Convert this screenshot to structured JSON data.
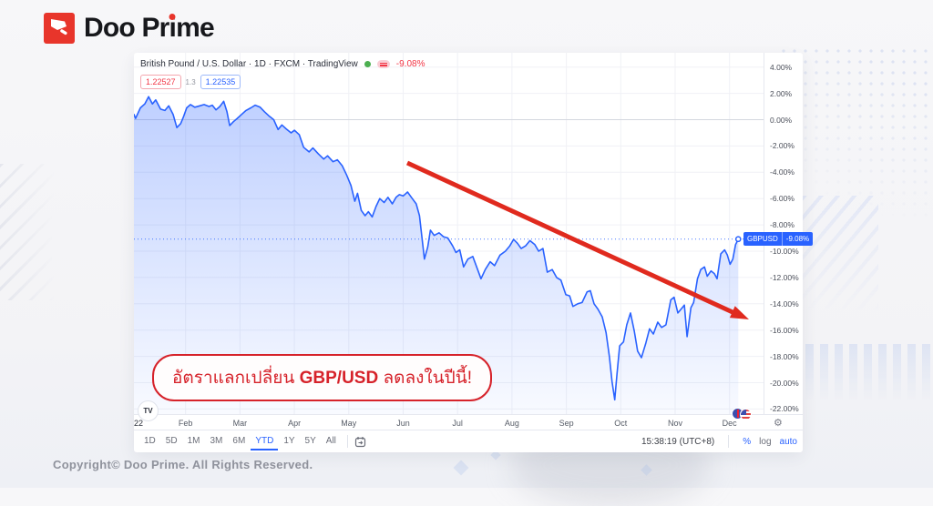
{
  "brand": {
    "logo_text_1": "Doo Pr",
    "logo_text_2": "i",
    "logo_text_3": "me"
  },
  "colors": {
    "accent_blue": "#2962ff",
    "brand_red": "#e8352b",
    "annotation_red": "#e02a1e",
    "callout_red": "#d6222a",
    "negative_red": "#f23645"
  },
  "chart": {
    "legend": {
      "symbol_title": "British Pound / U.S. Dollar · 1D · FXCM · TradingView",
      "change": "-9.08%"
    },
    "quote": {
      "bid": "1.22527",
      "spread": "1.3",
      "ask": "1.22535"
    },
    "price_label": {
      "symbol": "GBPUSD",
      "change": "-9.08%"
    }
  },
  "chart_data": {
    "type": "area",
    "title": "British Pound / U.S. Dollar",
    "interval": "1D",
    "source": "FXCM",
    "legend_position": "top-left",
    "grid": true,
    "y_axis": {
      "unit": "%",
      "ticks": [
        4,
        2,
        0,
        -2,
        -4,
        -6,
        -8,
        -10,
        -12,
        -14,
        -16,
        -18,
        -20,
        -22
      ],
      "range": [
        -22.5,
        4.5
      ]
    },
    "x_axis": {
      "start_label": "22",
      "month_labels": [
        "Feb",
        "Mar",
        "Apr",
        "May",
        "Jun",
        "Jul",
        "Aug",
        "Sep",
        "Oct",
        "Nov",
        "Dec"
      ]
    },
    "current_value_pct": -9.08,
    "points": [
      [
        0.05,
        0.4
      ],
      [
        0.08,
        0.1
      ],
      [
        0.17,
        0.9
      ],
      [
        0.25,
        1.2
      ],
      [
        0.32,
        1.75
      ],
      [
        0.39,
        1.2
      ],
      [
        0.45,
        1.5
      ],
      [
        0.54,
        0.8
      ],
      [
        0.62,
        0.7
      ],
      [
        0.69,
        1.05
      ],
      [
        0.77,
        0.4
      ],
      [
        0.84,
        -0.6
      ],
      [
        0.91,
        -0.3
      ],
      [
        0.96,
        0.2
      ],
      [
        1.02,
        0.9
      ],
      [
        1.09,
        1.15
      ],
      [
        1.17,
        0.95
      ],
      [
        1.26,
        1.05
      ],
      [
        1.34,
        1.15
      ],
      [
        1.43,
        1.0
      ],
      [
        1.49,
        1.1
      ],
      [
        1.56,
        0.75
      ],
      [
        1.63,
        1.0
      ],
      [
        1.7,
        1.4
      ],
      [
        1.76,
        0.6
      ],
      [
        1.81,
        -0.45
      ],
      [
        1.88,
        -0.15
      ],
      [
        1.95,
        0.1
      ],
      [
        2.03,
        0.4
      ],
      [
        2.11,
        0.7
      ],
      [
        2.2,
        0.9
      ],
      [
        2.28,
        1.1
      ],
      [
        2.37,
        0.95
      ],
      [
        2.45,
        0.6
      ],
      [
        2.53,
        0.3
      ],
      [
        2.62,
        0.0
      ],
      [
        2.7,
        -0.75
      ],
      [
        2.77,
        -0.4
      ],
      [
        2.85,
        -0.7
      ],
      [
        2.94,
        -1.0
      ],
      [
        3.0,
        -0.8
      ],
      [
        3.09,
        -1.15
      ],
      [
        3.17,
        -2.1
      ],
      [
        3.27,
        -2.45
      ],
      [
        3.34,
        -2.15
      ],
      [
        3.44,
        -2.6
      ],
      [
        3.54,
        -3.0
      ],
      [
        3.61,
        -2.75
      ],
      [
        3.71,
        -3.2
      ],
      [
        3.79,
        -3.05
      ],
      [
        3.88,
        -3.5
      ],
      [
        3.96,
        -4.2
      ],
      [
        4.04,
        -5.0
      ],
      [
        4.11,
        -6.2
      ],
      [
        4.16,
        -5.6
      ],
      [
        4.23,
        -6.9
      ],
      [
        4.3,
        -7.3
      ],
      [
        4.36,
        -7.0
      ],
      [
        4.43,
        -7.4
      ],
      [
        4.5,
        -6.6
      ],
      [
        4.57,
        -6.0
      ],
      [
        4.65,
        -6.3
      ],
      [
        4.72,
        -5.9
      ],
      [
        4.8,
        -6.4
      ],
      [
        4.87,
        -5.9
      ],
      [
        4.93,
        -5.7
      ],
      [
        5.0,
        -5.8
      ],
      [
        5.08,
        -5.5
      ],
      [
        5.15,
        -5.9
      ],
      [
        5.24,
        -6.4
      ],
      [
        5.3,
        -7.3
      ],
      [
        5.39,
        -10.6
      ],
      [
        5.45,
        -9.7
      ],
      [
        5.5,
        -8.4
      ],
      [
        5.57,
        -8.8
      ],
      [
        5.66,
        -8.6
      ],
      [
        5.74,
        -8.9
      ],
      [
        5.82,
        -9.0
      ],
      [
        5.91,
        -9.6
      ],
      [
        5.97,
        -10.1
      ],
      [
        6.04,
        -9.9
      ],
      [
        6.11,
        -11.2
      ],
      [
        6.19,
        -10.6
      ],
      [
        6.28,
        -10.4
      ],
      [
        6.36,
        -11.3
      ],
      [
        6.43,
        -12.1
      ],
      [
        6.51,
        -11.4
      ],
      [
        6.6,
        -10.8
      ],
      [
        6.68,
        -11.1
      ],
      [
        6.78,
        -10.3
      ],
      [
        6.88,
        -10.0
      ],
      [
        6.96,
        -9.6
      ],
      [
        7.03,
        -9.1
      ],
      [
        7.1,
        -9.4
      ],
      [
        7.17,
        -9.8
      ],
      [
        7.25,
        -9.6
      ],
      [
        7.33,
        -9.2
      ],
      [
        7.42,
        -9.5
      ],
      [
        7.49,
        -10.0
      ],
      [
        7.57,
        -9.8
      ],
      [
        7.65,
        -11.6
      ],
      [
        7.74,
        -11.4
      ],
      [
        7.82,
        -12.0
      ],
      [
        7.9,
        -12.2
      ],
      [
        7.99,
        -13.3
      ],
      [
        8.06,
        -13.4
      ],
      [
        8.12,
        -14.2
      ],
      [
        8.21,
        -14.0
      ],
      [
        8.29,
        -13.9
      ],
      [
        8.38,
        -13.1
      ],
      [
        8.44,
        -13.0
      ],
      [
        8.51,
        -14.0
      ],
      [
        8.58,
        -14.4
      ],
      [
        8.66,
        -15.0
      ],
      [
        8.73,
        -16.2
      ],
      [
        8.79,
        -18.0
      ],
      [
        8.84,
        -19.9
      ],
      [
        8.89,
        -21.3
      ],
      [
        8.93,
        -19.4
      ],
      [
        8.98,
        -17.2
      ],
      [
        9.05,
        -16.9
      ],
      [
        9.11,
        -15.6
      ],
      [
        9.18,
        -14.7
      ],
      [
        9.25,
        -16.1
      ],
      [
        9.31,
        -17.6
      ],
      [
        9.38,
        -18.1
      ],
      [
        9.46,
        -17.0
      ],
      [
        9.53,
        -15.9
      ],
      [
        9.6,
        -16.3
      ],
      [
        9.68,
        -15.4
      ],
      [
        9.75,
        -15.8
      ],
      [
        9.83,
        -15.6
      ],
      [
        9.92,
        -13.7
      ],
      [
        9.98,
        -13.5
      ],
      [
        10.05,
        -14.7
      ],
      [
        10.13,
        -14.3
      ],
      [
        10.17,
        -14.1
      ],
      [
        10.22,
        -16.5
      ],
      [
        10.29,
        -14.3
      ],
      [
        10.34,
        -13.9
      ],
      [
        10.41,
        -12.1
      ],
      [
        10.47,
        -11.4
      ],
      [
        10.54,
        -11.2
      ],
      [
        10.59,
        -11.9
      ],
      [
        10.66,
        -11.5
      ],
      [
        10.72,
        -11.7
      ],
      [
        10.77,
        -12.1
      ],
      [
        10.84,
        -10.2
      ],
      [
        10.91,
        -9.9
      ],
      [
        10.96,
        -10.3
      ],
      [
        11.01,
        -11.0
      ],
      [
        11.06,
        -10.6
      ],
      [
        11.11,
        -9.5
      ],
      [
        11.16,
        -9.08
      ]
    ]
  },
  "toolbar": {
    "ranges": [
      "1D",
      "5D",
      "1M",
      "3M",
      "6M",
      "YTD",
      "1Y",
      "5Y",
      "All"
    ],
    "active_range": "YTD",
    "clock": "15:38:19 (UTC+8)",
    "percent_label": "%",
    "log_label": "log",
    "auto_label": "auto"
  },
  "callout": {
    "prefix": "อัตราแลกเปลี่ยน ",
    "symbol": "GBP/USD",
    "suffix": " ลดลงในปีนี้!"
  },
  "footer": {
    "copyright": "Copyright© Doo Prime. All Rights Reserved."
  },
  "icons": {
    "gear": "⚙",
    "tradingview": "TV"
  }
}
